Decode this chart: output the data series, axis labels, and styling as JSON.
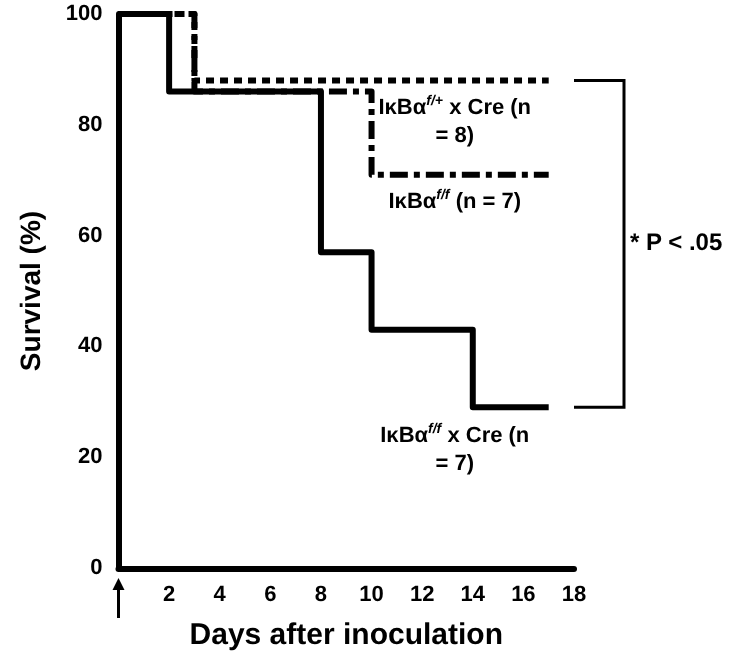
{
  "chart_data": {
    "type": "step",
    "xlabel": "Days after inoculation",
    "ylabel": "Survival (%)",
    "xlim": [
      0,
      18
    ],
    "xticks": [
      {
        "value": 0,
        "label": null
      },
      2,
      4,
      6,
      8,
      10,
      12,
      14,
      16,
      18
    ],
    "ylim": [
      0,
      100
    ],
    "yticks": [
      0,
      20,
      40,
      60,
      80,
      100
    ],
    "series": [
      {
        "name": "IκBα$^{f/+}$ x Cre (n = 8)",
        "color": "#000000",
        "line_style": "dotted",
        "x": [
          0,
          3,
          17
        ],
        "values": [
          100,
          88,
          88
        ]
      },
      {
        "name": "IκBα$^{f/f}$ (n = 7)",
        "color": "#000000",
        "line_style": "dashed",
        "x": [
          0,
          3,
          10,
          17
        ],
        "values": [
          100,
          86,
          71,
          71
        ]
      },
      {
        "name": "IκBα$^{f/f}$ x Cre (n = 7)",
        "color": "#000000",
        "line_style": "solid",
        "x": [
          0,
          2,
          8,
          10,
          14,
          17
        ],
        "values": [
          100,
          86,
          57,
          43,
          29,
          29
        ]
      }
    ],
    "annotations": [
      "* P < .05"
    ],
    "grid": false,
    "legend": false,
    "marker": "none"
  }
}
